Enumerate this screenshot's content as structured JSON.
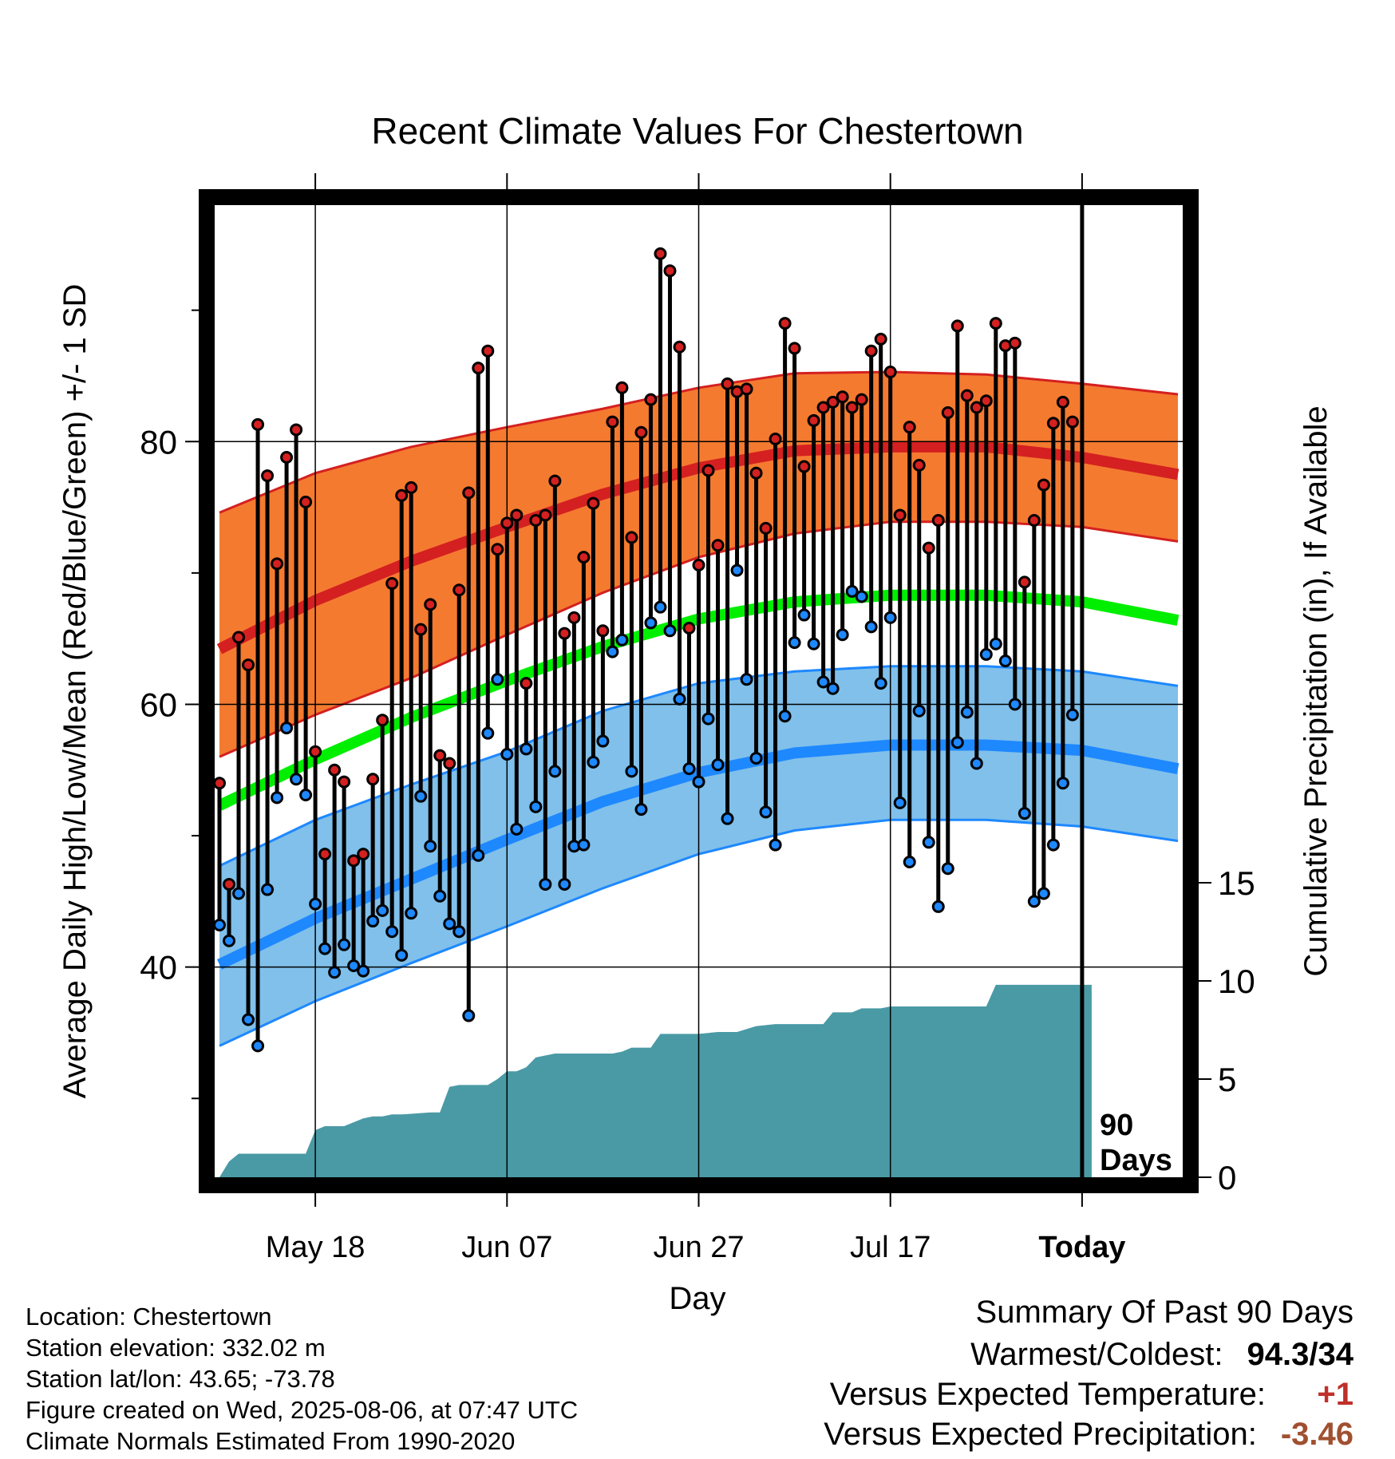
{
  "chart_data": {
    "type": "line",
    "title": "Recent Climate Values For Chestertown",
    "xlabel": "Day",
    "ylabel": "Average Daily High/Low/Mean (Red/Blue/Green) +/- 1 SD",
    "ylabel_right": "Cumulative Precipitation (in), If Available",
    "x_ticks": [
      "May 18",
      "Jun 07",
      "Jun 27",
      "Jul 17",
      "Today"
    ],
    "x_tick_days": [
      10,
      30,
      50,
      70,
      90
    ],
    "xlim_days": [
      -0.5,
      100.5
    ],
    "ylim": [
      24,
      98
    ],
    "y_ticks": [
      40,
      60,
      80
    ],
    "y_minor_ticks": [
      30,
      50,
      70,
      90
    ],
    "precip_ticks": [
      0,
      5,
      10,
      15
    ],
    "precip_axis_max": 15,
    "today_marker": "90 Days",
    "today_day": 90,
    "colors": {
      "high": "#d42020",
      "high_band": "#f47a30",
      "low": "#1e88ff",
      "low_band": "#80c0ea",
      "mean": "#00ee00",
      "precip": "#4a9aa5",
      "warm_text": "#c0302a",
      "precip_text": "#a05030"
    },
    "normals": {
      "days": [
        0,
        10,
        20,
        30,
        40,
        50,
        60,
        70,
        80,
        90,
        100
      ],
      "high_mean": [
        64.2,
        67.9,
        70.9,
        73.5,
        76.0,
        78.0,
        79.3,
        79.6,
        79.6,
        78.8,
        77.5
      ],
      "high_sd_upper": [
        74.6,
        77.6,
        79.6,
        81.1,
        82.5,
        84.1,
        85.2,
        85.3,
        85.1,
        84.4,
        83.6
      ],
      "high_sd_lower": [
        56.0,
        59.2,
        62.0,
        65.3,
        68.5,
        71.2,
        73.0,
        73.9,
        73.9,
        73.5,
        72.4
      ],
      "mean": [
        52.3,
        55.8,
        59.0,
        61.8,
        64.4,
        66.5,
        67.8,
        68.3,
        68.3,
        67.8,
        66.4
      ],
      "low_mean": [
        40.2,
        43.7,
        46.7,
        49.7,
        52.6,
        54.8,
        56.3,
        56.9,
        56.9,
        56.5,
        55.1
      ],
      "low_sd_upper": [
        47.7,
        51.2,
        53.9,
        56.4,
        59.5,
        61.6,
        62.5,
        62.9,
        62.9,
        62.5,
        61.4
      ],
      "low_sd_lower": [
        34.0,
        37.4,
        40.3,
        43.1,
        46.0,
        48.6,
        50.4,
        51.2,
        51.2,
        50.7,
        49.6
      ]
    },
    "daily": [
      {
        "day": 0,
        "high": 54.0,
        "low": 43.2
      },
      {
        "day": 1,
        "high": 46.3,
        "low": 42.0
      },
      {
        "day": 2,
        "high": 65.1,
        "low": 45.6
      },
      {
        "day": 3,
        "high": 63.0,
        "low": 36.0
      },
      {
        "day": 4,
        "high": 81.3,
        "low": 34.0
      },
      {
        "day": 5,
        "high": 77.4,
        "low": 45.9
      },
      {
        "day": 6,
        "high": 70.7,
        "low": 52.9
      },
      {
        "day": 7,
        "high": 78.8,
        "low": 58.2
      },
      {
        "day": 8,
        "high": 80.9,
        "low": 54.3
      },
      {
        "day": 9,
        "high": 75.4,
        "low": 53.1
      },
      {
        "day": 10,
        "high": 56.4,
        "low": 44.8
      },
      {
        "day": 11,
        "high": 48.6,
        "low": 41.4
      },
      {
        "day": 12,
        "high": 55.0,
        "low": 39.6
      },
      {
        "day": 13,
        "high": 54.1,
        "low": 41.7
      },
      {
        "day": 14,
        "high": 48.1,
        "low": 40.1
      },
      {
        "day": 15,
        "high": 48.6,
        "low": 39.7
      },
      {
        "day": 16,
        "high": 54.3,
        "low": 43.5
      },
      {
        "day": 17,
        "high": 58.8,
        "low": 44.3
      },
      {
        "day": 18,
        "high": 69.2,
        "low": 42.7
      },
      {
        "day": 19,
        "high": 75.9,
        "low": 40.9
      },
      {
        "day": 20,
        "high": 76.5,
        "low": 44.1
      },
      {
        "day": 21,
        "high": 65.7,
        "low": 53.0
      },
      {
        "day": 22,
        "high": 67.6,
        "low": 49.2
      },
      {
        "day": 23,
        "high": 56.1,
        "low": 45.4
      },
      {
        "day": 24,
        "high": 55.5,
        "low": 43.3
      },
      {
        "day": 25,
        "high": 68.7,
        "low": 42.7
      },
      {
        "day": 26,
        "high": 76.1,
        "low": 36.3
      },
      {
        "day": 27,
        "high": 85.6,
        "low": 48.5
      },
      {
        "day": 28,
        "high": 86.9,
        "low": 57.8
      },
      {
        "day": 29,
        "high": 71.8,
        "low": 61.9
      },
      {
        "day": 30,
        "high": 73.8,
        "low": 56.2
      },
      {
        "day": 31,
        "high": 74.4,
        "low": 50.5
      },
      {
        "day": 32,
        "high": 61.6,
        "low": 56.6
      },
      {
        "day": 33,
        "high": 74.0,
        "low": 52.2
      },
      {
        "day": 34,
        "high": 74.4,
        "low": 46.3
      },
      {
        "day": 35,
        "high": 77.0,
        "low": 54.9
      },
      {
        "day": 36,
        "high": 65.4,
        "low": 46.3
      },
      {
        "day": 37,
        "high": 66.6,
        "low": 49.2
      },
      {
        "day": 38,
        "high": 71.2,
        "low": 49.3
      },
      {
        "day": 39,
        "high": 75.3,
        "low": 55.6
      },
      {
        "day": 40,
        "high": 65.6,
        "low": 57.2
      },
      {
        "day": 41,
        "high": 81.5,
        "low": 64.0
      },
      {
        "day": 42,
        "high": 84.1,
        "low": 64.9
      },
      {
        "day": 43,
        "high": 72.7,
        "low": 54.9
      },
      {
        "day": 44,
        "high": 80.7,
        "low": 52.0
      },
      {
        "day": 45,
        "high": 83.2,
        "low": 66.2
      },
      {
        "day": 46,
        "high": 94.3,
        "low": 67.4
      },
      {
        "day": 47,
        "high": 93.0,
        "low": 65.6
      },
      {
        "day": 48,
        "high": 87.2,
        "low": 60.4
      },
      {
        "day": 49,
        "high": 65.8,
        "low": 55.1
      },
      {
        "day": 50,
        "high": 70.6,
        "low": 54.1
      },
      {
        "day": 51,
        "high": 77.8,
        "low": 58.9
      },
      {
        "day": 52,
        "high": 72.1,
        "low": 55.4
      },
      {
        "day": 53,
        "high": 84.4,
        "low": 51.3
      },
      {
        "day": 54,
        "high": 83.8,
        "low": 70.2
      },
      {
        "day": 55,
        "high": 84.0,
        "low": 61.9
      },
      {
        "day": 56,
        "high": 77.6,
        "low": 55.9
      },
      {
        "day": 57,
        "high": 73.4,
        "low": 51.8
      },
      {
        "day": 58,
        "high": 80.2,
        "low": 49.3
      },
      {
        "day": 59,
        "high": 89.0,
        "low": 59.1
      },
      {
        "day": 60,
        "high": 87.1,
        "low": 64.7
      },
      {
        "day": 61,
        "high": 78.1,
        "low": 66.8
      },
      {
        "day": 62,
        "high": 81.6,
        "low": 64.6
      },
      {
        "day": 63,
        "high": 82.6,
        "low": 61.7
      },
      {
        "day": 64,
        "high": 83.0,
        "low": 61.2
      },
      {
        "day": 65,
        "high": 83.4,
        "low": 65.3
      },
      {
        "day": 66,
        "high": 82.6,
        "low": 68.6
      },
      {
        "day": 67,
        "high": 83.2,
        "low": 68.2
      },
      {
        "day": 68,
        "high": 86.9,
        "low": 65.9
      },
      {
        "day": 69,
        "high": 87.8,
        "low": 61.6
      },
      {
        "day": 70,
        "high": 85.3,
        "low": 66.6
      },
      {
        "day": 71,
        "high": 74.4,
        "low": 52.5
      },
      {
        "day": 72,
        "high": 81.1,
        "low": 48.0
      },
      {
        "day": 73,
        "high": 78.2,
        "low": 59.5
      },
      {
        "day": 74,
        "high": 71.9,
        "low": 49.5
      },
      {
        "day": 75,
        "high": 74.0,
        "low": 44.6
      },
      {
        "day": 76,
        "high": 82.2,
        "low": 47.5
      },
      {
        "day": 77,
        "high": 88.8,
        "low": 57.1
      },
      {
        "day": 78,
        "high": 83.5,
        "low": 59.4
      },
      {
        "day": 79,
        "high": 82.6,
        "low": 55.5
      },
      {
        "day": 80,
        "high": 83.1,
        "low": 63.8
      },
      {
        "day": 81,
        "high": 89.0,
        "low": 64.6
      },
      {
        "day": 82,
        "high": 87.3,
        "low": 63.3
      },
      {
        "day": 83,
        "high": 87.5,
        "low": 60.0
      },
      {
        "day": 84,
        "high": 69.3,
        "low": 51.7
      },
      {
        "day": 85,
        "high": 74.0,
        "low": 45.0
      },
      {
        "day": 86,
        "high": 76.7,
        "low": 45.6
      },
      {
        "day": 87,
        "high": 81.4,
        "low": 49.3
      },
      {
        "day": 88,
        "high": 83.0,
        "low": 54.0
      },
      {
        "day": 89,
        "high": 81.5,
        "low": 59.2
      }
    ],
    "cumulative_precip": {
      "days": [
        0,
        1,
        2,
        4,
        5,
        6,
        7,
        8,
        9,
        10,
        11,
        12,
        13,
        14,
        15,
        16,
        17,
        18,
        19,
        22,
        23,
        24,
        25,
        26,
        27,
        28,
        29,
        30,
        31,
        32,
        33,
        35,
        36,
        37,
        38,
        39,
        40,
        41,
        42,
        43,
        44,
        45,
        46,
        47,
        48,
        50,
        52,
        54,
        56,
        58,
        60,
        62,
        63,
        64,
        65,
        66,
        67,
        68,
        69,
        70,
        71,
        72,
        74,
        76,
        78,
        79,
        80,
        81,
        82,
        84,
        90,
        91
      ],
      "values": [
        0,
        0.8,
        1.2,
        1.2,
        1.2,
        1.2,
        1.2,
        1.2,
        1.2,
        2.4,
        2.6,
        2.6,
        2.6,
        2.8,
        3.0,
        3.1,
        3.1,
        3.2,
        3.2,
        3.3,
        3.3,
        4.6,
        4.7,
        4.7,
        4.7,
        4.7,
        5.0,
        5.4,
        5.4,
        5.6,
        6.1,
        6.3,
        6.3,
        6.3,
        6.3,
        6.3,
        6.3,
        6.3,
        6.4,
        6.6,
        6.6,
        6.6,
        7.3,
        7.3,
        7.3,
        7.3,
        7.4,
        7.4,
        7.7,
        7.8,
        7.8,
        7.8,
        7.8,
        8.4,
        8.4,
        8.4,
        8.6,
        8.6,
        8.6,
        8.7,
        8.7,
        8.7,
        8.7,
        8.7,
        8.7,
        8.7,
        8.7,
        9.8,
        9.8,
        9.8,
        9.8,
        9.8
      ]
    }
  },
  "info": {
    "location": "Location: Chestertown",
    "elevation": "Station elevation: 332.02 m",
    "latlon": "Station lat/lon: 43.65; -73.78",
    "created": "Figure created on Wed, 2025-08-06, at 07:47 UTC",
    "normals_period": "Climate Normals Estimated From 1990-2020"
  },
  "summary": {
    "title": "Summary Of Past 90 Days",
    "warmest_coldest_label": "Warmest/Coldest:",
    "warmest_coldest_value": "94.3/34",
    "temp_label": "Versus Expected Temperature:",
    "temp_value": "+1",
    "precip_label": "Versus Expected Precipitation:",
    "precip_value": "-3.46"
  }
}
